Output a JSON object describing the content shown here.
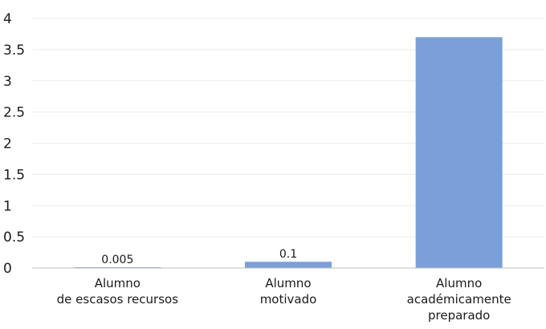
{
  "chart_data": {
    "type": "bar",
    "categories": [
      [
        "Alumno",
        "de escasos recursos"
      ],
      [
        "Alumno",
        "motivado"
      ],
      [
        "Alumno",
        "académicamente",
        "preparado"
      ]
    ],
    "values": [
      0.005,
      0.1,
      3.7
    ],
    "data_labels": [
      "0.005",
      "0.1",
      ""
    ],
    "ylim": [
      0,
      4
    ],
    "yticks": [
      "0",
      "0.5",
      "1",
      "1.5",
      "2",
      "2.5",
      "3",
      "3.5",
      "4"
    ],
    "grid": true,
    "bar_color": "#7a9fd9",
    "title": "",
    "xlabel": "",
    "ylabel": ""
  }
}
